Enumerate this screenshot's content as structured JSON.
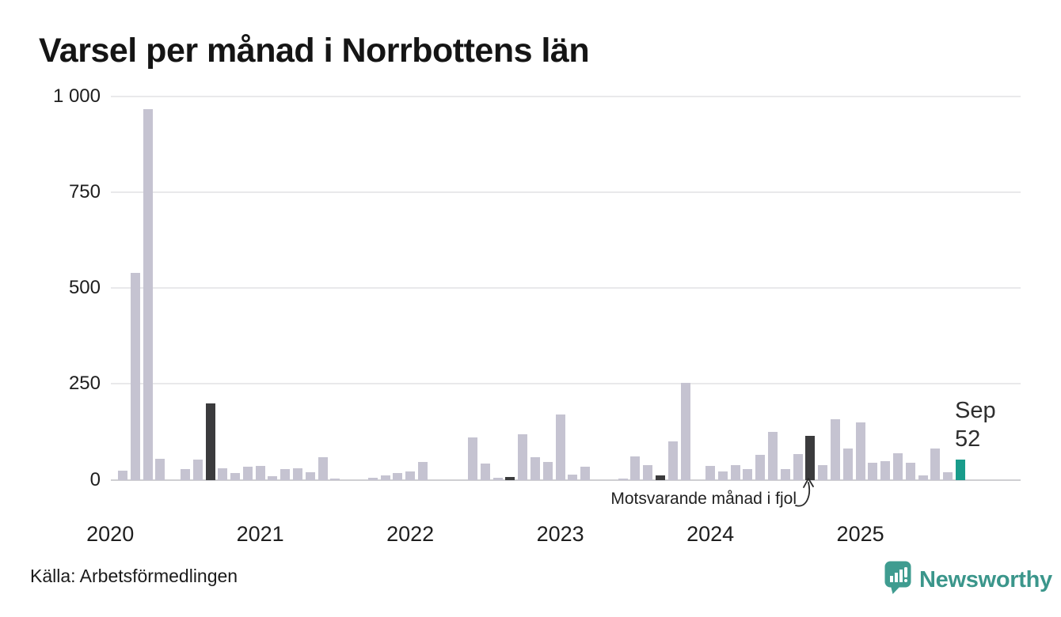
{
  "title": "Varsel per månad i Norrbottens län",
  "annotation": {
    "text": "Motsvarande månad i fjol"
  },
  "latest_label": {
    "month": "Sep",
    "value": "52"
  },
  "source": "Källa: Arbetsförmedlingen",
  "brand": {
    "name": "Newsworthy"
  },
  "y_axis": {
    "ticks": [
      {
        "label": "1 000",
        "value": 1000
      },
      {
        "label": "750",
        "value": 750
      },
      {
        "label": "500",
        "value": 500
      },
      {
        "label": "250",
        "value": 250
      },
      {
        "label": "0",
        "value": 0
      }
    ]
  },
  "x_axis": {
    "year_labels": [
      "2020",
      "2021",
      "2022",
      "2023",
      "2024",
      "2025"
    ]
  },
  "colors": {
    "bar_normal": "#c5c3d1",
    "bar_compare_dark": "#3b3b3d",
    "bar_latest_teal": "#199c8b",
    "grid": "#e9e9eb",
    "axis_line": "#cfcfd2",
    "text": "#1a1a1a",
    "brand_teal": "#3f9c90"
  },
  "chart_data": {
    "type": "bar",
    "title": "Varsel per månad i Norrbottens län",
    "xlabel": "",
    "ylabel": "",
    "ylim": [
      0,
      1000
    ],
    "yticks": [
      0,
      250,
      500,
      750,
      1000
    ],
    "grid": true,
    "months": [
      "2020-01",
      "2020-02",
      "2020-03",
      "2020-04",
      "2020-05",
      "2020-06",
      "2020-07",
      "2020-08",
      "2020-09",
      "2020-10",
      "2020-11",
      "2020-12",
      "2021-01",
      "2021-02",
      "2021-03",
      "2021-04",
      "2021-05",
      "2021-06",
      "2021-07",
      "2021-08",
      "2021-09",
      "2021-10",
      "2021-11",
      "2021-12",
      "2022-01",
      "2022-02",
      "2022-03",
      "2022-04",
      "2022-05",
      "2022-06",
      "2022-07",
      "2022-08",
      "2022-09",
      "2022-10",
      "2022-11",
      "2022-12",
      "2023-01",
      "2023-02",
      "2023-03",
      "2023-04",
      "2023-05",
      "2023-06",
      "2023-07",
      "2023-08",
      "2023-09",
      "2023-10",
      "2023-11",
      "2023-12",
      "2024-01",
      "2024-02",
      "2024-03",
      "2024-04",
      "2024-05",
      "2024-06",
      "2024-07",
      "2024-08",
      "2024-09",
      "2024-10",
      "2024-11",
      "2024-12",
      "2025-01",
      "2025-02",
      "2025-03",
      "2025-04",
      "2025-05",
      "2025-06",
      "2025-07",
      "2025-08",
      "2025-09"
    ],
    "values": [
      0,
      25,
      540,
      967,
      55,
      0,
      28,
      53,
      200,
      30,
      17,
      34,
      36,
      10,
      29,
      31,
      21,
      60,
      4,
      0,
      0,
      6,
      12,
      17,
      22,
      47,
      0,
      0,
      0,
      110,
      43,
      6,
      8,
      120,
      60,
      47,
      170,
      14,
      34,
      0,
      0,
      4,
      62,
      38,
      12,
      100,
      252,
      0,
      36,
      22,
      38,
      29,
      66,
      125,
      28,
      68,
      115,
      39,
      158,
      81,
      150,
      44,
      48,
      70,
      45,
      12,
      82,
      19,
      52
    ],
    "comparison_months_dark": [
      "2020-09",
      "2021-09",
      "2022-09",
      "2023-09",
      "2024-09"
    ],
    "latest_month_teal": "2025-09",
    "latest_month_label": "Sep",
    "latest_value": 52,
    "annotation": "Motsvarande månad i fjol",
    "legend_position": "none"
  }
}
